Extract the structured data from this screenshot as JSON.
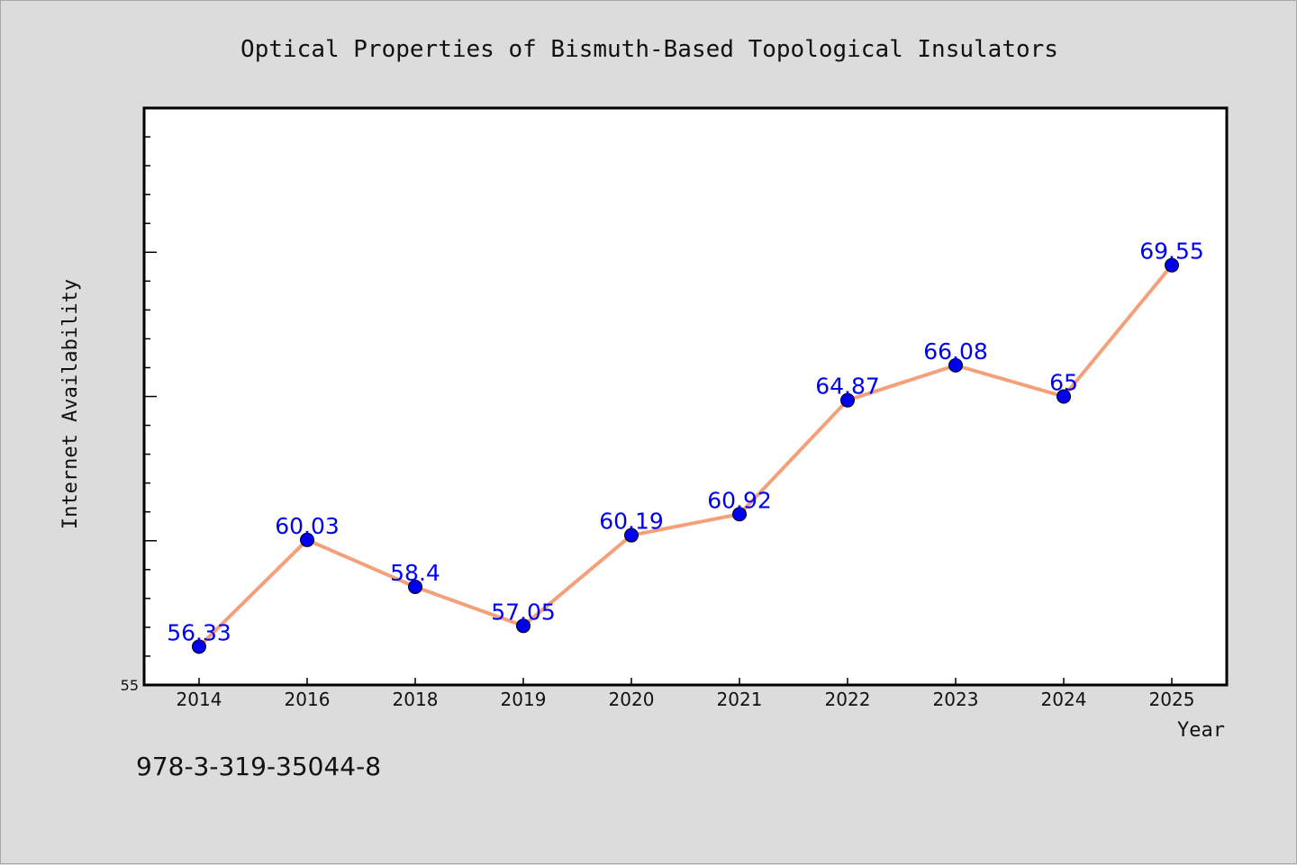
{
  "chart_data": {
    "type": "line",
    "title": "Optical Properties of Bismuth-Based Topological Insulators",
    "xlabel": "Year",
    "ylabel": "Internet Availability",
    "categories": [
      "2014",
      "2016",
      "2018",
      "2019",
      "2020",
      "2021",
      "2022",
      "2023",
      "2024",
      "2025"
    ],
    "series": [
      {
        "values": [
          56.33,
          60.03,
          58.4,
          57.05,
          60.19,
          60.92,
          64.87,
          66.08,
          65,
          69.55
        ]
      }
    ],
    "data_labels": [
      "56.33",
      "60.03",
      "58.4",
      "57.05",
      "60.19",
      "60.92",
      "64.87",
      "66.08",
      "65",
      "69.55"
    ],
    "ylim": [
      55,
      75
    ],
    "yticks": [
      "55"
    ],
    "grid": false,
    "colors": {
      "line": "#f4a07a",
      "marker": "#0000ee",
      "label": "#0000ee",
      "background": "#dcdcdc",
      "plot_background": "#ffffff"
    }
  },
  "footer": {
    "isbn": "978-3-319-35044-8"
  }
}
